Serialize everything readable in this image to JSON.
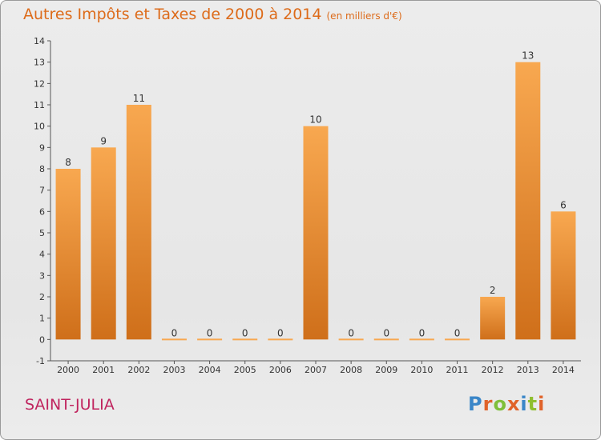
{
  "header": {
    "title": "Autres Impôts et Taxes de 2000 à 2014",
    "subtitle": "(en milliers d'€)"
  },
  "footer": {
    "commune": "SAINT-JULIA",
    "logo": "Proxiti"
  },
  "colors": {
    "title": "#dd6b1a",
    "commune": "#c0245e",
    "bar_light": "#f8a850",
    "bar_dark": "#cf6f1a",
    "logo_letters": [
      "#3a86c8",
      "#e0632a",
      "#7fbf3a",
      "#e0632a",
      "#3a86c8",
      "#8fbf2f",
      "#e0632a"
    ]
  },
  "chart_data": {
    "type": "bar",
    "title": "Autres Impôts et Taxes de 2000 à 2014",
    "subtitle": "(en milliers d'€)",
    "categories": [
      "2000",
      "2001",
      "2002",
      "2003",
      "2004",
      "2005",
      "2006",
      "2007",
      "2008",
      "2009",
      "2010",
      "2011",
      "2012",
      "2013",
      "2014"
    ],
    "values": [
      8,
      9,
      11,
      0,
      0,
      0,
      0,
      10,
      0,
      0,
      0,
      0,
      2,
      13,
      6
    ],
    "ylim": [
      -1,
      14
    ],
    "yticks": [
      -1,
      0,
      1,
      2,
      3,
      4,
      5,
      6,
      7,
      8,
      9,
      10,
      11,
      12,
      13,
      14
    ],
    "grid": false,
    "legend": "none"
  }
}
